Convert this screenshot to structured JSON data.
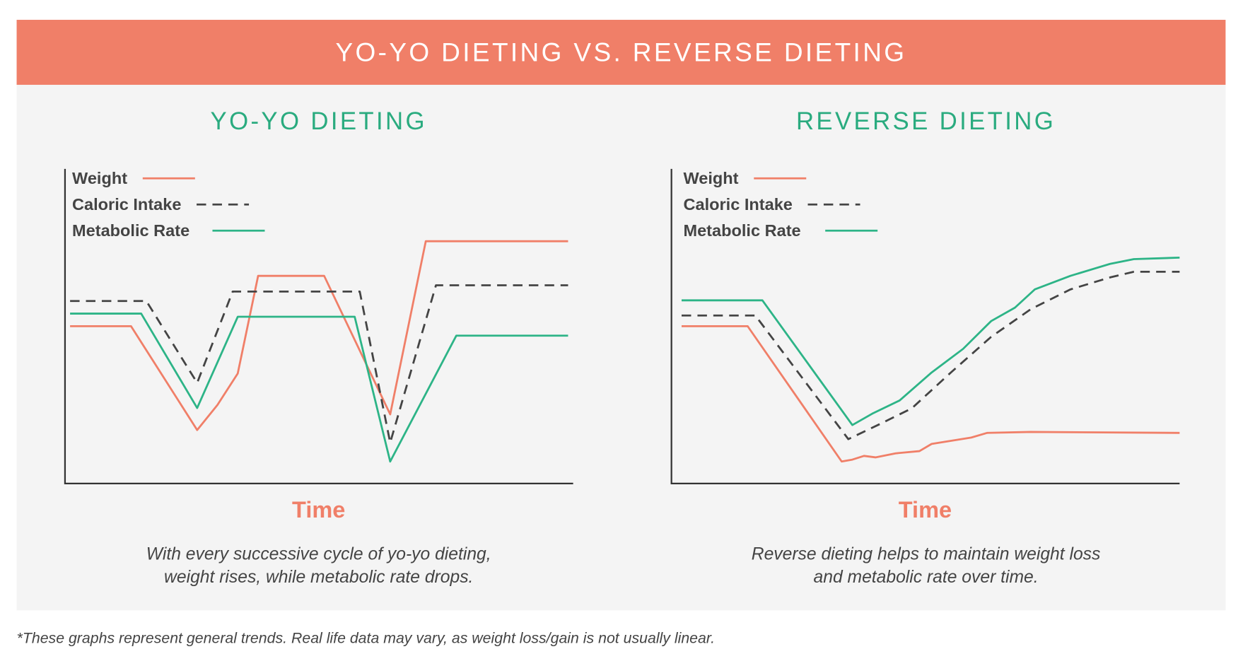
{
  "header": {
    "title": "YO-YO DIETING VS. REVERSE DIETING"
  },
  "colors": {
    "weight": "#F07F68",
    "caloric": "#444444",
    "metabolic": "#2DB487",
    "title_green": "#2aab7f",
    "header_bg": "#F07F68"
  },
  "chart_data": [
    {
      "type": "line",
      "title": "YO-YO DIETING",
      "xlabel": "Time",
      "ylabel": "",
      "xlim": [
        0,
        100
      ],
      "ylim": [
        0,
        100
      ],
      "grid": false,
      "legend": "top-left",
      "caption": [
        "With every successive cycle of yo-yo dieting,",
        "weight rises, while metabolic rate drops."
      ],
      "series": [
        {
          "name": "Weight",
          "style": "solid",
          "points": [
            [
              1,
              50
            ],
            [
              13,
              50
            ],
            [
              26,
              17
            ],
            [
              30,
              25
            ],
            [
              34,
              35
            ],
            [
              38,
              66
            ],
            [
              51,
              66
            ],
            [
              64,
              22
            ],
            [
              71,
              77
            ],
            [
              99,
              77
            ]
          ]
        },
        {
          "name": "Caloric Intake",
          "style": "dashed",
          "points": [
            [
              1,
              58
            ],
            [
              16,
              58
            ],
            [
              26,
              32
            ],
            [
              33,
              61
            ],
            [
              58,
              61
            ],
            [
              64,
              13
            ],
            [
              73,
              63
            ],
            [
              99,
              63
            ]
          ]
        },
        {
          "name": "Metabolic Rate",
          "style": "solid",
          "points": [
            [
              1,
              54
            ],
            [
              15,
              54
            ],
            [
              26,
              24
            ],
            [
              34,
              53
            ],
            [
              57,
              53
            ],
            [
              64,
              7
            ],
            [
              77,
              47
            ],
            [
              99,
              47
            ]
          ]
        }
      ]
    },
    {
      "type": "line",
      "title": "REVERSE DIETING",
      "xlabel": "Time",
      "ylabel": "",
      "xlim": [
        0,
        100
      ],
      "ylim": [
        0,
        100
      ],
      "grid": false,
      "legend": "top-left",
      "caption": [
        "Reverse dieting helps to maintain weight loss",
        "and metabolic rate over time."
      ],
      "series": [
        {
          "name": "Weight",
          "style": "solid",
          "points": [
            [
              2,
              50
            ],
            [
              15,
              50
            ],
            [
              33.5,
              7
            ],
            [
              35.6,
              7.6
            ],
            [
              37.9,
              8.8
            ],
            [
              40.2,
              8.3
            ],
            [
              44.1,
              9.6
            ],
            [
              48.8,
              10.3
            ],
            [
              51.2,
              12.6
            ],
            [
              59,
              14.6
            ],
            [
              62.1,
              16.1
            ],
            [
              70.7,
              16.4
            ],
            [
              100,
              16.1
            ]
          ]
        },
        {
          "name": "Caloric Intake",
          "style": "dashed",
          "points": [
            [
              2,
              53.4
            ],
            [
              16.5,
              53.4
            ],
            [
              34.8,
              14.1
            ],
            [
              41,
              18.9
            ],
            [
              47.3,
              23.9
            ],
            [
              55,
              35.3
            ],
            [
              62.9,
              46.6
            ],
            [
              70.7,
              55.4
            ],
            [
              78.5,
              61.7
            ],
            [
              86.3,
              65.5
            ],
            [
              91,
              67.3
            ],
            [
              100,
              67.3
            ]
          ]
        },
        {
          "name": "Metabolic Rate",
          "style": "solid",
          "points": [
            [
              2,
              58.2
            ],
            [
              17.9,
              58.2
            ],
            [
              35.6,
              18.6
            ],
            [
              39.5,
              22.2
            ],
            [
              44.9,
              26.4
            ],
            [
              51.2,
              35.3
            ],
            [
              57.4,
              42.8
            ],
            [
              62.9,
              51.6
            ],
            [
              67.6,
              55.9
            ],
            [
              71.5,
              61.7
            ],
            [
              78.5,
              66
            ],
            [
              86.3,
              69.8
            ],
            [
              91,
              71.3
            ],
            [
              100,
              71.8
            ]
          ]
        }
      ]
    }
  ],
  "footer": "*These graphs represent general trends. Real life data may vary, as weight loss/gain is not usually linear."
}
